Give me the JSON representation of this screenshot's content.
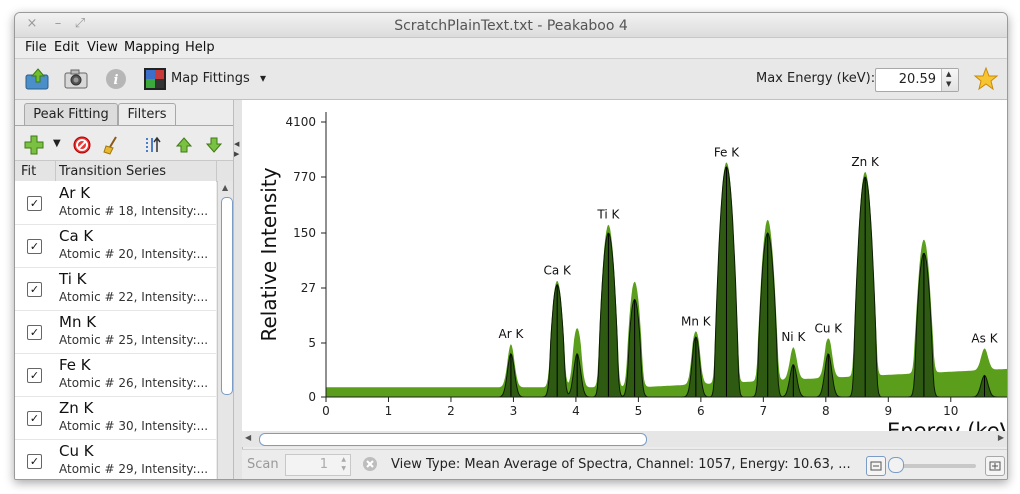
{
  "window": {
    "title": "ScratchPlainText.txt - Peakaboo 4",
    "close_glyph": "×",
    "minimize_glyph": "–",
    "maximize_glyph": "⤢"
  },
  "menu": [
    "File",
    "Edit",
    "View",
    "Mapping",
    "Help"
  ],
  "toolbar": {
    "map_fittings_label": "Map Fittings",
    "dropdown_glyph": "▾",
    "max_energy_label": "Max Energy (keV):",
    "max_energy_value": "20.59"
  },
  "tabs": {
    "peak_fitting": "Peak Fitting",
    "filters": "Filters"
  },
  "fit_table": {
    "col_fit": "Fit",
    "col_series": "Transition Series",
    "check_glyph": "✓",
    "rows": [
      {
        "name": "Ar K",
        "desc": "Atomic # 18, Intensity:..."
      },
      {
        "name": "Ca K",
        "desc": "Atomic # 20, Intensity:..."
      },
      {
        "name": "Ti K",
        "desc": "Atomic # 22, Intensity:..."
      },
      {
        "name": "Mn K",
        "desc": "Atomic # 25, Intensity:..."
      },
      {
        "name": "Fe K",
        "desc": "Atomic # 26, Intensity:..."
      },
      {
        "name": "Zn K",
        "desc": "Atomic # 30, Intensity:..."
      },
      {
        "name": "Cu K",
        "desc": "Atomic # 29, Intensity:..."
      }
    ]
  },
  "status": {
    "scan_label": "Scan",
    "scan_value": "1",
    "info": "View Type: Mean Average of Spectra,  Channel: 1057,  Energy: 10.63,  ..."
  },
  "colors": {
    "raw_fill": "#5a9e1c",
    "fit_fill": "#2e5a12",
    "fit_stroke": "#0c1c04",
    "accent": "#7a9cc6"
  },
  "chart_data": {
    "type": "area",
    "xlabel": "Energy (keV)",
    "ylabel": "Relative Intensity",
    "y_scale": "log",
    "xlim": [
      0,
      10.9
    ],
    "ylim": [
      0,
      4100
    ],
    "x_ticks": [
      "0",
      "1",
      "2",
      "3",
      "4",
      "5",
      "6",
      "7",
      "8",
      "9",
      "10"
    ],
    "y_ticks": [
      "0",
      "5",
      "27",
      "150",
      "770",
      "4100"
    ],
    "y_tick_values": [
      0,
      5,
      27,
      150,
      770,
      4100
    ],
    "background": {
      "low_energy": 0.9,
      "ramp_to": 2.6,
      "ramp_start_keV": 5.0,
      "ramp_end_keV": 10.9
    },
    "raw_peaks": [
      {
        "keV": 2.96,
        "value": 4
      },
      {
        "keV": 3.7,
        "value": 33
      },
      {
        "keV": 4.02,
        "value": 7
      },
      {
        "keV": 4.52,
        "value": 190
      },
      {
        "keV": 4.94,
        "value": 32
      },
      {
        "keV": 5.92,
        "value": 6
      },
      {
        "keV": 6.41,
        "value": 1200
      },
      {
        "keV": 7.07,
        "value": 220
      },
      {
        "keV": 7.48,
        "value": 3
      },
      {
        "keV": 8.04,
        "value": 4
      },
      {
        "keV": 8.63,
        "value": 900
      },
      {
        "keV": 9.57,
        "value": 120
      },
      {
        "keV": 10.54,
        "value": 2
      }
    ],
    "fitted_peaks": [
      {
        "keV": 2.96,
        "value": 4
      },
      {
        "keV": 3.7,
        "value": 30
      },
      {
        "keV": 4.02,
        "value": 4
      },
      {
        "keV": 4.52,
        "value": 150
      },
      {
        "keV": 4.94,
        "value": 19
      },
      {
        "keV": 5.92,
        "value": 6
      },
      {
        "keV": 6.41,
        "value": 1050
      },
      {
        "keV": 7.07,
        "value": 150
      },
      {
        "keV": 7.48,
        "value": 3
      },
      {
        "keV": 8.04,
        "value": 4
      },
      {
        "keV": 8.63,
        "value": 770
      },
      {
        "keV": 9.57,
        "value": 80
      },
      {
        "keV": 10.54,
        "value": 2
      }
    ],
    "annotations": [
      {
        "label": "Ar K",
        "keV": 2.96
      },
      {
        "label": "Ca K",
        "keV": 3.7
      },
      {
        "label": "Ti K",
        "keV": 4.52
      },
      {
        "label": "Mn K",
        "keV": 5.92
      },
      {
        "label": "Fe K",
        "keV": 6.41
      },
      {
        "label": "Ni K",
        "keV": 7.48
      },
      {
        "label": "Cu K",
        "keV": 8.04
      },
      {
        "label": "Zn K",
        "keV": 8.63
      },
      {
        "label": "As K",
        "keV": 10.54
      }
    ]
  }
}
